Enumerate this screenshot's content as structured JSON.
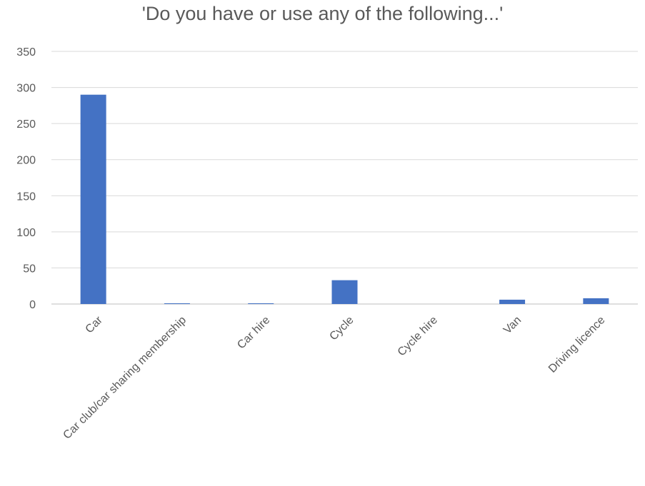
{
  "chart_data": {
    "type": "bar",
    "title": "'Do you have or use any of the following...'",
    "xlabel": "",
    "ylabel": "",
    "categories": [
      "Car",
      "Car club/car sharing membership",
      "Car hire",
      "Cycle",
      "Cycle hire",
      "Van",
      "Driving licence"
    ],
    "values": [
      290,
      1,
      1,
      33,
      0,
      6,
      8
    ],
    "ylim": [
      0,
      350
    ],
    "yticks": [
      0,
      50,
      100,
      150,
      200,
      250,
      300,
      350
    ],
    "grid": true,
    "legend": "none",
    "bar_color": "#4472c4"
  }
}
